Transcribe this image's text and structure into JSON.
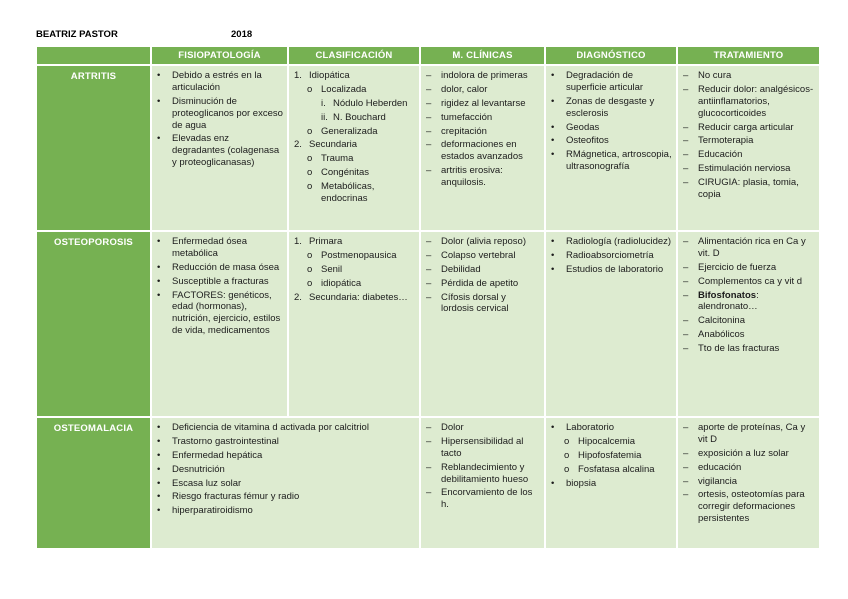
{
  "header": {
    "author": "BEATRIZ PASTOR",
    "year": "2018"
  },
  "colors": {
    "table_green": "#76b152",
    "cell_green": "#ddebd0",
    "header_text": "#ffffff",
    "body_text": "#1c1c1c"
  },
  "table": {
    "columns": [
      "",
      "FISIOPATOLOGÍA",
      "CLASIFICACIÓN",
      "M. CLÍNICAS",
      "DIAGNÓSTICO",
      "TRATAMIENTO"
    ],
    "rows": [
      {
        "label": "ARTRITIS",
        "cells": [
          {
            "items": [
              {
                "m": "•",
                "t": "Debido a estrés en la articulación",
                "ind": 0
              },
              {
                "m": "•",
                "t": "Disminución de proteoglicanos por exceso de agua",
                "ind": 0
              },
              {
                "m": "•",
                "t": "Elevadas enz degradantes (colagenasa y proteoglicanasas)",
                "ind": 0
              }
            ]
          },
          {
            "items": [
              {
                "m": "1.",
                "t": "Idiopática",
                "ind": 0
              },
              {
                "m": "o",
                "t": "Localizada",
                "ind": 1
              },
              {
                "m": "i.",
                "t": "Nódulo Heberden",
                "ind": 2
              },
              {
                "m": "ii.",
                "t": "N. Bouchard",
                "ind": 2
              },
              {
                "m": "o",
                "t": "Generalizada",
                "ind": 1
              },
              {
                "m": "2.",
                "t": "Secundaria",
                "ind": 0
              },
              {
                "m": "o",
                "t": "Trauma",
                "ind": 1
              },
              {
                "m": "o",
                "t": "Congénitas",
                "ind": 1
              },
              {
                "m": "o",
                "t": "Metabólicas, endocrinas",
                "ind": 1
              }
            ]
          },
          {
            "items": [
              {
                "m": "–",
                "t": "indolora de primeras",
                "ind": 0
              },
              {
                "m": "–",
                "t": "dolor, calor",
                "ind": 0
              },
              {
                "m": "–",
                "t": "rigidez al levantarse",
                "ind": 0
              },
              {
                "m": "–",
                "t": "tumefacción",
                "ind": 0
              },
              {
                "m": "–",
                "t": "crepitación",
                "ind": 0
              },
              {
                "m": "–",
                "t": "deformaciones en estados avanzados",
                "ind": 0
              },
              {
                "m": "–",
                "t": "artritis erosiva: anquilosis.",
                "ind": 0
              }
            ]
          },
          {
            "items": [
              {
                "m": "•",
                "t": "Degradación de superficie articular",
                "ind": 0
              },
              {
                "m": "•",
                "t": "Zonas de desgaste y esclerosis",
                "ind": 0
              },
              {
                "m": "•",
                "t": "Geodas",
                "ind": 0
              },
              {
                "m": "•",
                "t": "Osteofitos",
                "ind": 0
              },
              {
                "m": "•",
                "t": "RMágnetica, artroscopia, ultrasonografía",
                "ind": 0
              }
            ]
          },
          {
            "items": [
              {
                "m": "–",
                "t": "No cura",
                "ind": 0
              },
              {
                "m": "–",
                "t": "Reducir dolor: analgésicos-antiinflamatorios, glucocorticoides",
                "ind": 0
              },
              {
                "m": "–",
                "t": "Reducir carga articular",
                "ind": 0
              },
              {
                "m": "–",
                "t": "Termoterapia",
                "ind": 0
              },
              {
                "m": "–",
                "t": "Educación",
                "ind": 0
              },
              {
                "m": "–",
                "t": "Estimulación nerviosa",
                "ind": 0
              },
              {
                "m": "–",
                "t": "CIRUGIA: plasia, tomia, copia",
                "ind": 0
              }
            ]
          }
        ]
      },
      {
        "label": "OSTEOPOROSIS",
        "cells": [
          {
            "items": [
              {
                "m": "•",
                "t": "Enfermedad ósea metabólica",
                "ind": 0
              },
              {
                "m": "•",
                "t": "Reducción de masa ósea",
                "ind": 0
              },
              {
                "m": "•",
                "t": "Susceptible a fracturas",
                "ind": 0
              },
              {
                "m": "•",
                "t": "FACTORES: genéticos, edad (hormonas), nutrición, ejercicio, estilos de vida, medicamentos",
                "ind": 0
              }
            ]
          },
          {
            "items": [
              {
                "m": "1.",
                "t": "Primara",
                "ind": 0
              },
              {
                "m": "o",
                "t": "Postmenopausica",
                "ind": 1
              },
              {
                "m": "o",
                "t": "Senil",
                "ind": 1
              },
              {
                "m": "o",
                "t": "idiopática",
                "ind": 1
              },
              {
                "m": "2.",
                "t": "Secundaria: diabetes…",
                "ind": 0
              }
            ]
          },
          {
            "items": [
              {
                "m": "–",
                "t": "Dolor (alivia reposo)",
                "ind": 0
              },
              {
                "m": "–",
                "t": "Colapso vertebral",
                "ind": 0
              },
              {
                "m": "–",
                "t": "Debilidad",
                "ind": 0
              },
              {
                "m": "–",
                "t": "Pérdida de apetito",
                "ind": 0
              },
              {
                "m": "–",
                "t": "Cífosis dorsal y lordosis cervical",
                "ind": 0
              }
            ]
          },
          {
            "items": [
              {
                "m": "•",
                "t": "Radiología (radiolucidez)",
                "ind": 0
              },
              {
                "m": "•",
                "t": "Radioabsorciometría",
                "ind": 0
              },
              {
                "m": "•",
                "t": "Estudios de laboratorio",
                "ind": 0
              }
            ]
          },
          {
            "items": [
              {
                "m": "–",
                "t": "Alimentación rica en Ca y vit. D",
                "ind": 0
              },
              {
                "m": "–",
                "t": "Ejercicio de fuerza",
                "ind": 0
              },
              {
                "m": "–",
                "t": "Complementos ca y vit d",
                "ind": 0
              },
              {
                "m": "–",
                "b": "Bifosfonatos",
                "t": ": alendronato…",
                "ind": 0
              },
              {
                "m": "–",
                "t": "Calcitonina",
                "ind": 0
              },
              {
                "m": "–",
                "t": "Anabólicos",
                "ind": 0
              },
              {
                "m": "–",
                "t": "Tto de las fracturas",
                "ind": 0
              }
            ]
          }
        ]
      },
      {
        "label": "OSTEOMALACIA",
        "cells": [
          {
            "colspan": 2,
            "items": [
              {
                "m": "•",
                "t": "Deficiencia de vitamina d activada por calcitriol",
                "ind": 0
              },
              {
                "m": "•",
                "t": "Trastorno gastrointestinal",
                "ind": 0
              },
              {
                "m": "•",
                "t": "Enfermedad hepática",
                "ind": 0
              },
              {
                "m": "•",
                "t": "Desnutrición",
                "ind": 0
              },
              {
                "m": "•",
                "t": "Escasa luz solar",
                "ind": 0
              },
              {
                "m": "•",
                "t": "Riesgo fracturas fémur y radio",
                "ind": 0
              },
              {
                "m": "•",
                "t": "hiperparatiroidismo",
                "ind": 0
              }
            ]
          },
          {
            "items": [
              {
                "m": "–",
                "t": "Dolor",
                "ind": 0
              },
              {
                "m": "–",
                "t": "Hipersensibilidad al tacto",
                "ind": 0
              },
              {
                "m": "–",
                "t": "Reblandecimiento y debilitamiento hueso",
                "ind": 0
              },
              {
                "m": "–",
                "t": "Encorvamiento de los h.",
                "ind": 0
              }
            ]
          },
          {
            "items": [
              {
                "m": "•",
                "t": "Laboratorio",
                "ind": 0
              },
              {
                "m": "o",
                "t": "Hipocalcemia",
                "ind": 1
              },
              {
                "m": "o",
                "t": "Hipofosfatemia",
                "ind": 1
              },
              {
                "m": "o",
                "t": "Fosfatasa alcalina",
                "ind": 1
              },
              {
                "m": "•",
                "t": "biopsia",
                "ind": 0
              }
            ]
          },
          {
            "items": [
              {
                "m": "–",
                "t": "aporte de proteínas, Ca y vit D",
                "ind": 0
              },
              {
                "m": "–",
                "t": "exposición a luz solar",
                "ind": 0
              },
              {
                "m": "–",
                "t": "educación",
                "ind": 0
              },
              {
                "m": "–",
                "t": "vigilancia",
                "ind": 0
              },
              {
                "m": "–",
                "t": "ortesis, osteotomías para corregir deformaciones persistentes",
                "ind": 0
              }
            ]
          }
        ]
      }
    ]
  }
}
